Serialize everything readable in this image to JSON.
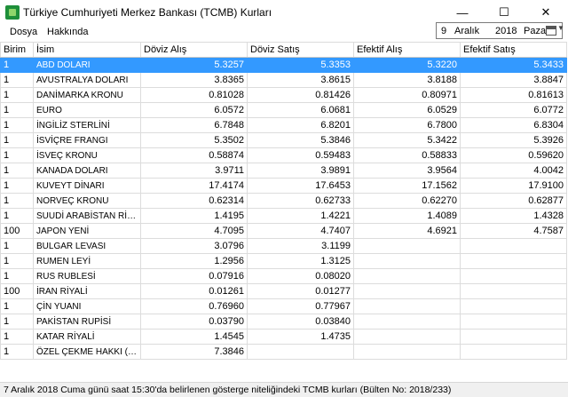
{
  "window": {
    "title": "Türkiye Cumhuriyeti Merkez Bankası (TCMB) Kurları",
    "minimize_glyph": "—",
    "maximize_glyph": "☐",
    "close_glyph": "✕"
  },
  "menu": {
    "file": "Dosya",
    "about": "Hakkında"
  },
  "date_picker": {
    "day": "9",
    "month": "Aralık",
    "year": "2018",
    "weekday": "Pazar",
    "dropdown_glyph": "▼"
  },
  "table": {
    "headers": [
      "Birim",
      "İsim",
      "Döviz Alış",
      "Döviz Satış",
      "Efektif Alış",
      "Efektif Satış"
    ],
    "rows": [
      {
        "unit": "1",
        "name": "ABD DOLARI",
        "fx_buy": "5.3257",
        "fx_sell": "5.3353",
        "bn_buy": "5.3220",
        "bn_sell": "5.3433"
      },
      {
        "unit": "1",
        "name": "AVUSTRALYA DOLARI",
        "fx_buy": "3.8365",
        "fx_sell": "3.8615",
        "bn_buy": "3.8188",
        "bn_sell": "3.8847"
      },
      {
        "unit": "1",
        "name": "DANİMARKA KRONU",
        "fx_buy": "0.81028",
        "fx_sell": "0.81426",
        "bn_buy": "0.80971",
        "bn_sell": "0.81613"
      },
      {
        "unit": "1",
        "name": "EURO",
        "fx_buy": "6.0572",
        "fx_sell": "6.0681",
        "bn_buy": "6.0529",
        "bn_sell": "6.0772"
      },
      {
        "unit": "1",
        "name": "İNGİLİZ STERLİNİ",
        "fx_buy": "6.7848",
        "fx_sell": "6.8201",
        "bn_buy": "6.7800",
        "bn_sell": "6.8304"
      },
      {
        "unit": "1",
        "name": "İSVİÇRE FRANGI",
        "fx_buy": "5.3502",
        "fx_sell": "5.3846",
        "bn_buy": "5.3422",
        "bn_sell": "5.3926"
      },
      {
        "unit": "1",
        "name": "İSVEÇ KRONU",
        "fx_buy": "0.58874",
        "fx_sell": "0.59483",
        "bn_buy": "0.58833",
        "bn_sell": "0.59620"
      },
      {
        "unit": "1",
        "name": "KANADA DOLARI",
        "fx_buy": "3.9711",
        "fx_sell": "3.9891",
        "bn_buy": "3.9564",
        "bn_sell": "4.0042"
      },
      {
        "unit": "1",
        "name": "KUVEYT DİNARI",
        "fx_buy": "17.4174",
        "fx_sell": "17.6453",
        "bn_buy": "17.1562",
        "bn_sell": "17.9100"
      },
      {
        "unit": "1",
        "name": "NORVEÇ KRONU",
        "fx_buy": "0.62314",
        "fx_sell": "0.62733",
        "bn_buy": "0.62270",
        "bn_sell": "0.62877"
      },
      {
        "unit": "1",
        "name": "SUUDİ ARABİSTAN RİYALİ",
        "fx_buy": "1.4195",
        "fx_sell": "1.4221",
        "bn_buy": "1.4089",
        "bn_sell": "1.4328"
      },
      {
        "unit": "100",
        "name": "JAPON YENİ",
        "fx_buy": "4.7095",
        "fx_sell": "4.7407",
        "bn_buy": "4.6921",
        "bn_sell": "4.7587"
      },
      {
        "unit": "1",
        "name": "BULGAR LEVASI",
        "fx_buy": "3.0796",
        "fx_sell": "3.1199",
        "bn_buy": "",
        "bn_sell": ""
      },
      {
        "unit": "1",
        "name": "RUMEN LEYİ",
        "fx_buy": "1.2956",
        "fx_sell": "1.3125",
        "bn_buy": "",
        "bn_sell": ""
      },
      {
        "unit": "1",
        "name": "RUS RUBLESİ",
        "fx_buy": "0.07916",
        "fx_sell": "0.08020",
        "bn_buy": "",
        "bn_sell": ""
      },
      {
        "unit": "100",
        "name": "İRAN RİYALİ",
        "fx_buy": "0.01261",
        "fx_sell": "0.01277",
        "bn_buy": "",
        "bn_sell": ""
      },
      {
        "unit": "1",
        "name": "ÇİN YUANI",
        "fx_buy": "0.76960",
        "fx_sell": "0.77967",
        "bn_buy": "",
        "bn_sell": ""
      },
      {
        "unit": "1",
        "name": "PAKİSTAN RUPİSİ",
        "fx_buy": "0.03790",
        "fx_sell": "0.03840",
        "bn_buy": "",
        "bn_sell": ""
      },
      {
        "unit": "1",
        "name": "KATAR RİYALİ",
        "fx_buy": "1.4545",
        "fx_sell": "1.4735",
        "bn_buy": "",
        "bn_sell": ""
      },
      {
        "unit": "1",
        "name": "ÖZEL ÇEKME HAKKI (SD...",
        "fx_buy": "7.3846",
        "fx_sell": "",
        "bn_buy": "",
        "bn_sell": ""
      }
    ]
  },
  "status": {
    "text": "7 Aralık 2018 Cuma günü saat 15:30'da belirlenen gösterge niteliğindeki TCMB kurları (Bülten No: 2018/233)"
  },
  "colors": {
    "selection": "#3399ff",
    "app_icon": "#1e8f3a"
  }
}
